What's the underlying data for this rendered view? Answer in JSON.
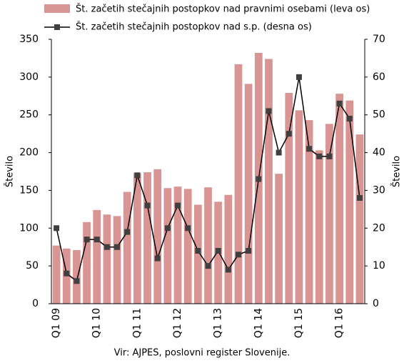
{
  "chart_data": {
    "type": "bar-line",
    "source": "Vir: AJPES, poslovni register Slovenije.",
    "y_label": "Število",
    "y2_label": "Število",
    "categories": [
      "Q1 09",
      null,
      null,
      null,
      "Q1 10",
      null,
      null,
      null,
      "Q1 11",
      null,
      null,
      null,
      "Q1 12",
      null,
      null,
      null,
      "Q1 13",
      null,
      null,
      null,
      "Q1 14",
      null,
      null,
      null,
      "Q1 15",
      null,
      null,
      null,
      "Q1 16",
      null,
      null
    ],
    "series": [
      {
        "name": "Št. začetih stečajnih postopkov nad pravnimi osebami (leva os)",
        "color": "#d99594",
        "type": "bar",
        "values": [
          77,
          73,
          71,
          108,
          124,
          118,
          116,
          148,
          173,
          174,
          178,
          153,
          155,
          152,
          131,
          154,
          135,
          144,
          317,
          291,
          332,
          324,
          172,
          279,
          256,
          243,
          203,
          238,
          278,
          269,
          224
        ]
      },
      {
        "name": "Št. začetih stečajnih postopkov nad s.p. (desna os)",
        "color": "#000000",
        "marker_color": "#404040",
        "type": "line",
        "axis": "y2",
        "values": [
          20,
          8,
          6,
          17,
          17,
          15,
          15,
          19,
          34,
          26,
          12,
          20,
          26,
          20,
          14,
          10,
          14,
          9,
          13,
          14,
          33,
          51,
          40,
          45,
          60,
          41,
          39,
          39,
          53,
          49,
          28
        ]
      }
    ],
    "ylim": [
      0,
      350
    ],
    "yticks": [
      0,
      50,
      100,
      150,
      200,
      250,
      300,
      350
    ],
    "y2lim": [
      0,
      70
    ],
    "y2ticks": [
      0,
      10,
      20,
      30,
      40,
      50,
      60,
      70
    ]
  }
}
